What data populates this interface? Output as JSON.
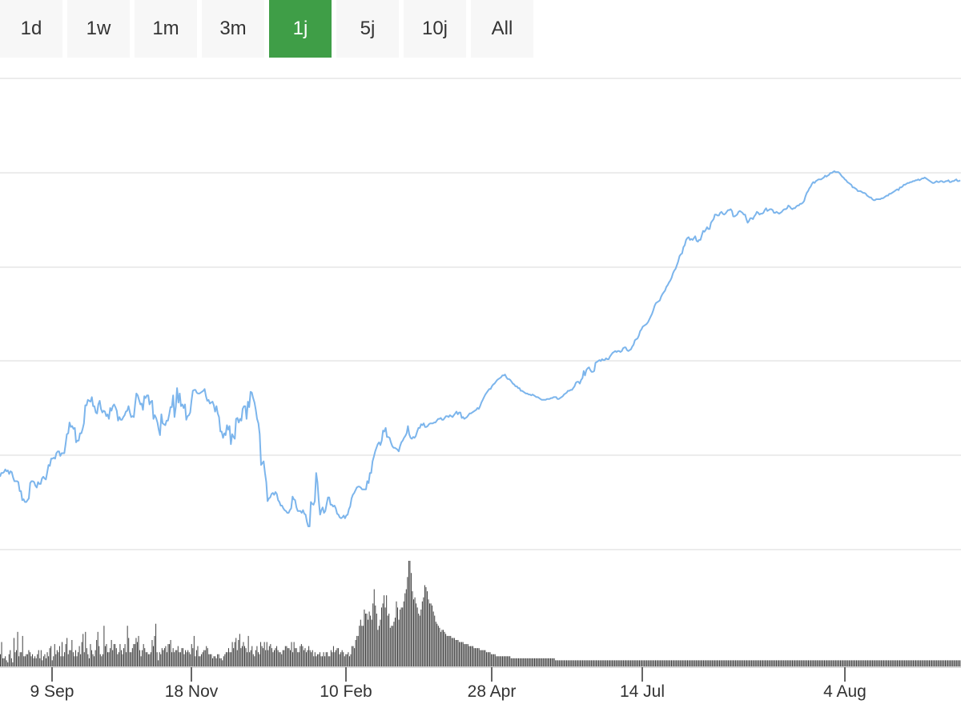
{
  "range_selector": {
    "buttons": [
      {
        "label": "1d",
        "active": false
      },
      {
        "label": "1w",
        "active": false
      },
      {
        "label": "1m",
        "active": false
      },
      {
        "label": "3m",
        "active": false
      },
      {
        "label": "1j",
        "active": true
      },
      {
        "label": "5j",
        "active": false
      },
      {
        "label": "10j",
        "active": false
      },
      {
        "label": "All",
        "active": false
      }
    ],
    "active_color": "#3f9e47"
  },
  "chart_data": {
    "type": "line",
    "title": "",
    "xlabel": "",
    "ylabel": "",
    "grid": true,
    "line_color": "#7cb5ec",
    "volume_color": "#404040",
    "x_ticks": [
      "9 Sep",
      "18 Nov",
      "10 Feb",
      "28 Apr",
      "14 Jul",
      "4 Aug"
    ],
    "price_series": {
      "name": "",
      "values": [
        60,
        64,
        64,
        65,
        68,
        66,
        67,
        63,
        66,
        65,
        59,
        55,
        55,
        55,
        54,
        44,
        44,
        34,
        35,
        32,
        32,
        34,
        36,
        53,
        55,
        55,
        54,
        50,
        48,
        54,
        52,
        52,
        58,
        60,
        58,
        57,
        65,
        73,
        72,
        80,
        80,
        81,
        80,
        86,
        88,
        88,
        83,
        86,
        86,
        86,
        96,
        107,
        108,
        120,
        115,
        116,
        113,
        114,
        98,
        100,
        100,
        108,
        108,
        113,
        119,
        139,
        139,
        145,
        144,
        143,
        148,
        138,
        138,
        131,
        130,
        140,
        144,
        135,
        131,
        133,
        132,
        127,
        129,
        124,
        136,
        133,
        138,
        140,
        137,
        133,
        122,
        126,
        123,
        123,
        126,
        128,
        132,
        133,
        138,
        131,
        126,
        127,
        126,
        140,
        152,
        150,
        145,
        140,
        141,
        134,
        149,
        147,
        150,
        150,
        140,
        143,
        144,
        124,
        128,
        125,
        120,
        112,
        106,
        129,
        119,
        118,
        117,
        122,
        122,
        129,
        137,
        137,
        150,
        126,
        137,
        158,
        142,
        152,
        138,
        140,
        136,
        140,
        123,
        127,
        128,
        131,
        144,
        155,
        156,
        156,
        153,
        152,
        152,
        153,
        154,
        155,
        157,
        149,
        144,
        145,
        141,
        142,
        143,
        139,
        132,
        138,
        130,
        126,
        110,
        110,
        103,
        108,
        106,
        117,
        112,
        116,
        96,
        107,
        104,
        102,
        124,
        125,
        120,
        124,
        122,
        135,
        138,
        138,
        124,
        143,
        137,
        154,
        153,
        147,
        142,
        134,
        124,
        119,
        107,
        73,
        75,
        77,
        64,
        54,
        33,
        36,
        37,
        41,
        42,
        40,
        43,
        41,
        34,
        32,
        28,
        28,
        25,
        23,
        22,
        20,
        20,
        23,
        25,
        38,
        35,
        34,
        26,
        22,
        22,
        22,
        20,
        23,
        19,
        18,
        10,
        5,
        5,
        32,
        30,
        29,
        33,
        64,
        54,
        34,
        18,
        23,
        26,
        20,
        22,
        30,
        37,
        37,
        29,
        29,
        27,
        28,
        25,
        19,
        18,
        15,
        14,
        15,
        17,
        14,
        17,
        18,
        24,
        27,
        36,
        40,
        42,
        45,
        48,
        49,
        49,
        48,
        46,
        46,
        46,
        46,
        55,
        53,
        64,
        64,
        77,
        82,
        88,
        92,
        96,
        98,
        95,
        100,
        111,
        110,
        114,
        104,
        104,
        103,
        98,
        94,
        92,
        92,
        91,
        90,
        88,
        94,
        98,
        100,
        103,
        105,
        108,
        116,
        107,
        103,
        102,
        104,
        103,
        105,
        110,
        114,
        114,
        118,
        117,
        119,
        115,
        115,
        116,
        118,
        119,
        119,
        119,
        120,
        120,
        122,
        124,
        124,
        125,
        123,
        123,
        125,
        127,
        127,
        126,
        128,
        127,
        126,
        128,
        130,
        132,
        129,
        131,
        131,
        125,
        126,
        124,
        125,
        126,
        128,
        130,
        130,
        131,
        132,
        133,
        134,
        136,
        135,
        138,
        142,
        145,
        148,
        151,
        153,
        155,
        157,
        157,
        160,
        162,
        163,
        165,
        167,
        168,
        169,
        170,
        172,
        172,
        173,
        170,
        168,
        168,
        167,
        165,
        163,
        162,
        160,
        160,
        158,
        158,
        155,
        155,
        154,
        153,
        152,
        152,
        151,
        151,
        150,
        151,
        150,
        149,
        148,
        148,
        147,
        146,
        145,
        145,
        145,
        145,
        146,
        146,
        146,
        147,
        147,
        148,
        148,
        148,
        146,
        146,
        147,
        148,
        149,
        151,
        152,
        153,
        155,
        155,
        156,
        156,
        158,
        160,
        164,
        165,
        165,
        163,
        167,
        169,
        177,
        172,
        178,
        180,
        181,
        178,
        176,
        176,
        177,
        186,
        187,
        188,
        189,
        188,
        190,
        189,
        189,
        191,
        190,
        190,
        193,
        195,
        197,
        198,
        199,
        198,
        199,
        199,
        198,
        199,
        202,
        203,
        203,
        200,
        199,
        200,
        201,
        204,
        206,
        211,
        212,
        213,
        216,
        221,
        223,
        226,
        227,
        228,
        229,
        231,
        234,
        237,
        240,
        244,
        249,
        252,
        253,
        254,
        255,
        259,
        262,
        264,
        266,
        270,
        272,
        275,
        277,
        280,
        285,
        288,
        290,
        294,
        298,
        304,
        306,
        307,
        314,
        316,
        322,
        324,
        325,
        322,
        323,
        322,
        324,
        326,
        321,
        320,
        322,
        322,
        327,
        332,
        331,
        333,
        336,
        334,
        334,
        341,
        343,
        345,
        350,
        350,
        349,
        349,
        352,
        353,
        351,
        350,
        351,
        353,
        355,
        355,
        356,
        354,
        348,
        348,
        349,
        350,
        353,
        354,
        353,
        352,
        350,
        350,
        345,
        341,
        343,
        346,
        346,
        345,
        348,
        350,
        353,
        352,
        350,
        351,
        351,
        352,
        355,
        357,
        354,
        355,
        356,
        356,
        355,
        352,
        352,
        353,
        352,
        351,
        352,
        353,
        355,
        356,
        356,
        357,
        360,
        359,
        357,
        356,
        357,
        357,
        359,
        360,
        360,
        362,
        362,
        363,
        365,
        370,
        374,
        376,
        379,
        381,
        384,
        386,
        385,
        387,
        388,
        389,
        389,
        389,
        390,
        391,
        393,
        392,
        393,
        394,
        396,
        396,
        397,
        398,
        397,
        397,
        397,
        396,
        394,
        392,
        391,
        389,
        388,
        386,
        385,
        384,
        383,
        380,
        380,
        379,
        378,
        376,
        376,
        376,
        375,
        374,
        374,
        373,
        371,
        370,
        369,
        369,
        367,
        366,
        366,
        367,
        367,
        367,
        367,
        368,
        368,
        369,
        370,
        371,
        371,
        373,
        373,
        374,
        375,
        376,
        377,
        378,
        377,
        380,
        380,
        381,
        383,
        383,
        384,
        385,
        385,
        386,
        386,
        387,
        387,
        388,
        388,
        389,
        388,
        389,
        390,
        390,
        391,
        390,
        389,
        388,
        387,
        386,
        385,
        385,
        386,
        387,
        386,
        386,
        387,
        387,
        386,
        386,
        387,
        387,
        388,
        386,
        386,
        387,
        387,
        388,
        389,
        387,
        387,
        388
      ]
    },
    "volume_series": {
      "name": "",
      "values": [
        12,
        24,
        8,
        8,
        10,
        6,
        4,
        12,
        16,
        8,
        4,
        28,
        14,
        16,
        34,
        10,
        14,
        14,
        30,
        10,
        10,
        12,
        12,
        16,
        14,
        10,
        12,
        8,
        10,
        8,
        12,
        16,
        8,
        16,
        6,
        10,
        12,
        8,
        14,
        10,
        18,
        20,
        6,
        10,
        22,
        12,
        16,
        14,
        20,
        10,
        24,
        10,
        14,
        22,
        28,
        12,
        16,
        16,
        26,
        14,
        10,
        16,
        10,
        14,
        20,
        12,
        24,
        32,
        14,
        34,
        18,
        12,
        8,
        22,
        16,
        12,
        10,
        16,
        26,
        34,
        20,
        12,
        10,
        12,
        40,
        20,
        22,
        14,
        14,
        18,
        26,
        16,
        22,
        22,
        18,
        12,
        14,
        22,
        16,
        12,
        18,
        22,
        14,
        40,
        28,
        14,
        14,
        18,
        22,
        22,
        28,
        24,
        30,
        16,
        10,
        16,
        22,
        18,
        14,
        14,
        12,
        12,
        14,
        26,
        20,
        30,
        42,
        14,
        6,
        14,
        12,
        18,
        16,
        18,
        20,
        14,
        22,
        22,
        26,
        14,
        18,
        14,
        16,
        16,
        20,
        14,
        14,
        18,
        18,
        12,
        16,
        14,
        16,
        14,
        12,
        22,
        18,
        30,
        10,
        16,
        20,
        10,
        10,
        12,
        14,
        16,
        16,
        20,
        18,
        12,
        12,
        12,
        8,
        10,
        10,
        8,
        12,
        12,
        8,
        8,
        6,
        10,
        12,
        14,
        14,
        18,
        14,
        14,
        24,
        18,
        24,
        28,
        16,
        26,
        32,
        18,
        20,
        24,
        20,
        18,
        14,
        30,
        14,
        16,
        20,
        12,
        10,
        16,
        20,
        14,
        12,
        24,
        20,
        18,
        24,
        16,
        24,
        16,
        20,
        22,
        18,
        14,
        16,
        18,
        20,
        16,
        14,
        14,
        12,
        16,
        16,
        20,
        20,
        18,
        18,
        16,
        24,
        14,
        24,
        18,
        18,
        14,
        14,
        20,
        22,
        20,
        16,
        18,
        14,
        16,
        20,
        16,
        14,
        16,
        10,
        14,
        10,
        12,
        12,
        14,
        10,
        10,
        14,
        10,
        14,
        14,
        10,
        10,
        16,
        14,
        20,
        14,
        16,
        18,
        18,
        12,
        14,
        16,
        14,
        10,
        12,
        12,
        14,
        10,
        12,
        20,
        20,
        18,
        26,
        30,
        30,
        40,
        46,
        40,
        40,
        56,
        52,
        52,
        46,
        54,
        50,
        46,
        62,
        76,
        60,
        52,
        36,
        40,
        46,
        58,
        62,
        70,
        58,
        70,
        50,
        52,
        38,
        40,
        40,
        44,
        48,
        64,
        58,
        46,
        56,
        58,
        58,
        64,
        72,
        76,
        88,
        104,
        104,
        92,
        74,
        66,
        68,
        62,
        58,
        52,
        50,
        56,
        64,
        68,
        80,
        78,
        74,
        66,
        62,
        62,
        60,
        54,
        50,
        44,
        42,
        40,
        38,
        34,
        36,
        36,
        34,
        32,
        30,
        30,
        30,
        30,
        28,
        28,
        28,
        26,
        26,
        26,
        24,
        24,
        24,
        24,
        22,
        22,
        22,
        22,
        20,
        20,
        20,
        20,
        18,
        18,
        18,
        18,
        18,
        16,
        16,
        16,
        16,
        16,
        14,
        14,
        14,
        14,
        12,
        12,
        12,
        12,
        10,
        10,
        10,
        10,
        10,
        10,
        10,
        10,
        10,
        10,
        10,
        10,
        8,
        8,
        8,
        8,
        8,
        8,
        8,
        8,
        8,
        8,
        8,
        8,
        8,
        8,
        8,
        8,
        8,
        8,
        8,
        8,
        8,
        8,
        8,
        8,
        8,
        8,
        8,
        8,
        8,
        8,
        8,
        8,
        8,
        8,
        8,
        8,
        6,
        6,
        6,
        6,
        6,
        6,
        6,
        6,
        6,
        6,
        6,
        6,
        6,
        6,
        6,
        6,
        6,
        6,
        6,
        6,
        6,
        6,
        6,
        6,
        6,
        6,
        6,
        6,
        6,
        6,
        6,
        6,
        6,
        6,
        6,
        6,
        6,
        6,
        6,
        6,
        6,
        6,
        6,
        6,
        6,
        6,
        6,
        6,
        6,
        6,
        6,
        6,
        6,
        6,
        6,
        6,
        6,
        6,
        6,
        6,
        6,
        6,
        6,
        6,
        6,
        6,
        6,
        6,
        6,
        6,
        6,
        6,
        6,
        6,
        6,
        6,
        6,
        6,
        6,
        6,
        6,
        6,
        6,
        6,
        6,
        6,
        6,
        6,
        6,
        6,
        6,
        6,
        6,
        6,
        6,
        6,
        6,
        6,
        6,
        6,
        6,
        6,
        6,
        6,
        6,
        6,
        6,
        6,
        6,
        6,
        6,
        6,
        6,
        6,
        6,
        6,
        6,
        6,
        6,
        6,
        6,
        6,
        6,
        6,
        6,
        6,
        6,
        6,
        6,
        6,
        6,
        6,
        6,
        6,
        6,
        6,
        6,
        6,
        6,
        6,
        6,
        6,
        6,
        6,
        6,
        6,
        6,
        6,
        6,
        6,
        6,
        6,
        6,
        6,
        6,
        6,
        6,
        6,
        6,
        6,
        6,
        6,
        6,
        6,
        6,
        6,
        6,
        6,
        6,
        6,
        6,
        6,
        6,
        6,
        6,
        6,
        6,
        6,
        6,
        6,
        6,
        6,
        6,
        6,
        6,
        6,
        6,
        6,
        6,
        6,
        6,
        6,
        6,
        6,
        6,
        6,
        6,
        6,
        6,
        6,
        6,
        6,
        6,
        6,
        6,
        6,
        6,
        6,
        6,
        6,
        6,
        6,
        6,
        6,
        6,
        6,
        6,
        6,
        6,
        6,
        6,
        6,
        6,
        6,
        6,
        6,
        6,
        6,
        6,
        6,
        6,
        6,
        6,
        6,
        6,
        6,
        6,
        6,
        6,
        6,
        6,
        6,
        6,
        6,
        6,
        6,
        6,
        6,
        6,
        6,
        6,
        6,
        6,
        6,
        6,
        6,
        6,
        6,
        6,
        6,
        6,
        6,
        6,
        6,
        6,
        6,
        6,
        6,
        6,
        6,
        6,
        6,
        6,
        6,
        6,
        6,
        6,
        6,
        6,
        6,
        6,
        6,
        6,
        6,
        6,
        6,
        6,
        6,
        6,
        6,
        6,
        6,
        6,
        6,
        6,
        6,
        6,
        6,
        6,
        6,
        6,
        6,
        6,
        6,
        6,
        6,
        6,
        6,
        6,
        6,
        6,
        6,
        6,
        6,
        6,
        6,
        6,
        6,
        6,
        6,
        6,
        6,
        6,
        6,
        6,
        6,
        6,
        6,
        6
      ]
    }
  }
}
